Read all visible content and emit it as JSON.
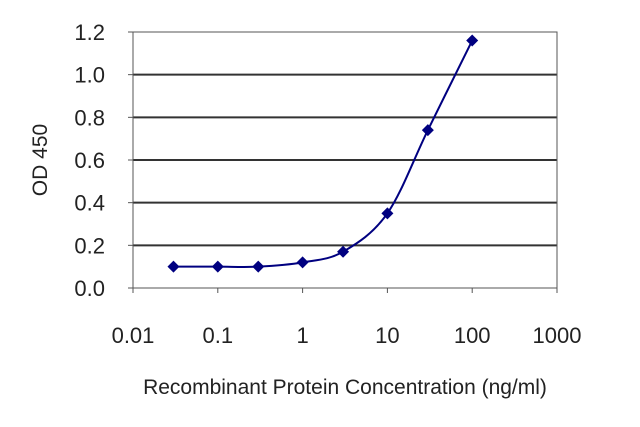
{
  "chart_data": {
    "type": "line",
    "x_scale": "log",
    "xlim": [
      0.01,
      1000
    ],
    "ylim": [
      0.0,
      1.2
    ],
    "xlabel": "Recombinant Protein Concentration (ng/ml)",
    "ylabel": "OD 450",
    "x_ticks": [
      "0.01",
      "0.1",
      "1",
      "10",
      "100",
      "1000"
    ],
    "y_ticks": [
      "0.0",
      "0.2",
      "0.4",
      "0.6",
      "0.8",
      "1.0",
      "1.2"
    ],
    "grid": "horizontal",
    "series": [
      {
        "x": [
          0.03,
          0.1,
          0.3,
          1,
          3,
          10,
          30,
          100
        ],
        "y": [
          0.1,
          0.1,
          0.1,
          0.12,
          0.17,
          0.35,
          0.74,
          1.16
        ],
        "color": "#000080",
        "marker": "diamond"
      }
    ]
  }
}
